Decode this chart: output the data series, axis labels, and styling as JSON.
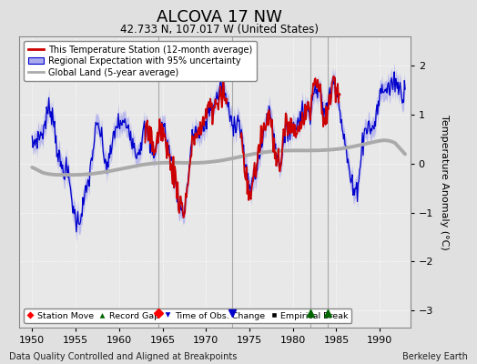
{
  "title": "ALCOVA 17 NW",
  "subtitle": "42.733 N, 107.017 W (United States)",
  "ylabel": "Temperature Anomaly (°C)",
  "xlabel_note": "Data Quality Controlled and Aligned at Breakpoints",
  "credit": "Berkeley Earth",
  "xlim": [
    1948.5,
    1993.5
  ],
  "ylim": [
    -3.35,
    2.6
  ],
  "yticks": [
    -3,
    -2,
    -1,
    0,
    1,
    2
  ],
  "xticks": [
    1950,
    1955,
    1960,
    1965,
    1970,
    1975,
    1980,
    1985,
    1990
  ],
  "bg_color": "#e0e0e0",
  "plot_bg_color": "#e8e8e8",
  "grid_color": "#ffffff",
  "station_color": "#cc0000",
  "regional_color": "#0000cc",
  "regional_fill_color": "#aaaaee",
  "global_color": "#aaaaaa",
  "vert_lines": [
    1964.5,
    1973.0,
    1982.0,
    1984.0
  ],
  "station_move_x": 1964.5,
  "record_gap_x1": 1982.0,
  "record_gap_x2": 1984.0,
  "obs_change_x": 1973.0,
  "marker_y": -3.05
}
